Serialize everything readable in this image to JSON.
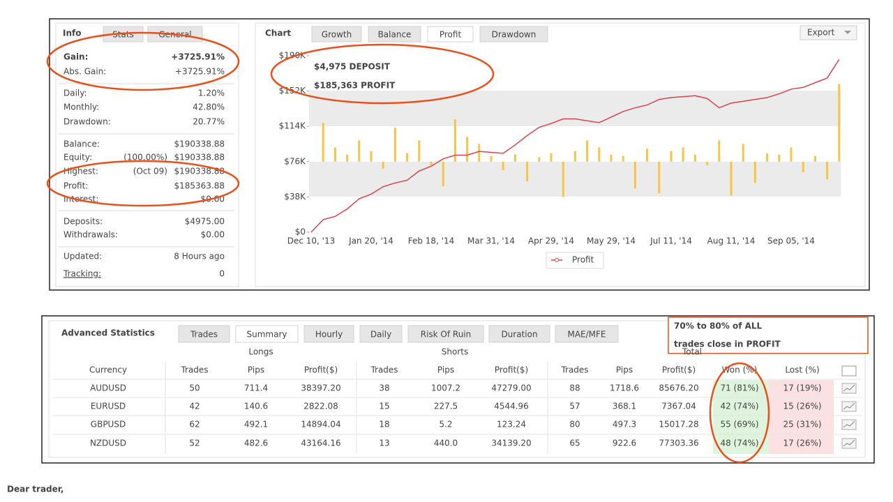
{
  "info": {
    "tabs": [
      "Info",
      "Stats",
      "General"
    ],
    "rows": [
      {
        "label": "Gain:",
        "value": "+3725.91%"
      },
      {
        "label": "Abs. Gain:",
        "value": "+3725.91%"
      },
      {
        "label": "Daily:",
        "value": "1.20%"
      },
      {
        "label": "Monthly:",
        "value": "42.80%"
      },
      {
        "label": "Drawdown:",
        "value": "20.77%"
      },
      {
        "label": "Balance:",
        "value": "$190338.88"
      },
      {
        "label": "Equity:",
        "note": "(100.00%)",
        "value": "$190338.88"
      },
      {
        "label": "Highest:",
        "note": "(Oct 09)",
        "value": "$190338.88"
      },
      {
        "label": "Profit:",
        "value": "$185363.88"
      },
      {
        "label": "Interest:",
        "value": "$0.00"
      },
      {
        "label": "Deposits:",
        "value": "$4975.00"
      },
      {
        "label": "Withdrawals:",
        "value": "$0.00"
      },
      {
        "label": "Updated:",
        "value": "8 Hours ago"
      },
      {
        "label": "Tracking:",
        "value": "0"
      }
    ]
  },
  "chart_panel": {
    "label": "Chart",
    "tabs": [
      "Growth",
      "Balance",
      "Profit",
      "Drawdown"
    ],
    "export": "Export",
    "chart_data": {
      "type": "line",
      "categories": [
        "Dec 10, '13",
        null,
        null,
        null,
        null,
        "Jan 20, '14",
        null,
        null,
        null,
        null,
        "Feb 18, '14",
        null,
        null,
        null,
        null,
        "Mar 31, '14",
        null,
        null,
        null,
        null,
        "Apr 29, '14",
        null,
        null,
        null,
        null,
        "May 29, '14",
        null,
        null,
        null,
        null,
        "Jul 11, '14",
        null,
        null,
        null,
        null,
        "Aug 11, '14",
        null,
        null,
        null,
        null,
        "Sep 05, '14",
        null,
        null,
        null,
        null
      ],
      "series": [
        {
          "name": "Profit",
          "color": "#d9434b",
          "values": [
            0,
            13500,
            17000,
            25000,
            36000,
            41000,
            49000,
            53000,
            56000,
            66000,
            71000,
            79000,
            83000,
            83000,
            87000,
            86000,
            85000,
            94000,
            104000,
            113000,
            117000,
            122000,
            122000,
            120000,
            118000,
            124000,
            130000,
            134000,
            137000,
            143000,
            145000,
            146000,
            147000,
            144000,
            134000,
            139000,
            141000,
            143000,
            145000,
            149000,
            154000,
            156000,
            161000,
            166000,
            186000
          ]
        },
        {
          "color": "#f5c54a",
          "axis": "y2",
          "values": [
            0,
            55,
            20,
            10,
            30,
            15,
            -10,
            48,
            12,
            30,
            -5,
            -35,
            60,
            35,
            25,
            8,
            -12,
            10,
            -28,
            6,
            12,
            -50,
            15,
            30,
            20,
            10,
            8,
            -38,
            18,
            -45,
            15,
            20,
            10,
            -5,
            30,
            -48,
            25,
            -30,
            12,
            10,
            20,
            -15,
            8,
            -25,
            110
          ]
        }
      ],
      "ylim": [
        0,
        190000
      ],
      "yticks": [
        {
          "value": 0,
          "label": "$0"
        },
        {
          "value": 38000,
          "label": "$38K"
        },
        {
          "value": 76000,
          "label": "$76K"
        },
        {
          "value": 114000,
          "label": "$114K"
        },
        {
          "value": 152000,
          "label": "$152K"
        },
        {
          "value": 190000,
          "label": "$190K"
        }
      ],
      "y2lim": [
        -100,
        150
      ]
    }
  },
  "annotations": {
    "chart": [
      "$4,975 DEPOSIT",
      "$185,363 PROFIT"
    ],
    "table": [
      "70% to 80% of ALL",
      "trades close in PROFIT"
    ]
  },
  "advanced_statistics": {
    "title": "Advanced Statistics",
    "tabs": [
      "Trades",
      "Summary",
      "Hourly",
      "Daily",
      "Risk Of Ruin",
      "Duration",
      "MAE/MFE"
    ],
    "groups": [
      "Longs",
      "Shorts",
      "Total"
    ],
    "columns": [
      "Currency",
      "Trades",
      "Pips",
      "Profit($)",
      "Trades",
      "Pips",
      "Profit($)",
      "Trades",
      "Pips",
      "Profit($)",
      "Won (%)",
      "Lost (%)"
    ],
    "rows": [
      [
        "AUDUSD",
        "50",
        "711.4",
        "38397.20",
        "38",
        "1007.2",
        "47279.00",
        "88",
        "1718.6",
        "85676.20",
        "71 (81%)",
        "17 (19%)"
      ],
      [
        "EURUSD",
        "42",
        "140.6",
        "2822.08",
        "15",
        "227.5",
        "4544.96",
        "57",
        "368.1",
        "7367.04",
        "42 (74%)",
        "15 (26%)"
      ],
      [
        "GBPUSD",
        "62",
        "492.1",
        "14894.04",
        "18",
        "5.2",
        "123.24",
        "80",
        "497.3",
        "15017.28",
        "55 (69%)",
        "25 (31%)"
      ],
      [
        "NZDUSD",
        "52",
        "482.6",
        "43164.16",
        "13",
        "440.0",
        "34139.20",
        "65",
        "922.6",
        "77303.36",
        "48 (74%)",
        "17 (26%)"
      ]
    ]
  },
  "footer": "Dear trader,"
}
